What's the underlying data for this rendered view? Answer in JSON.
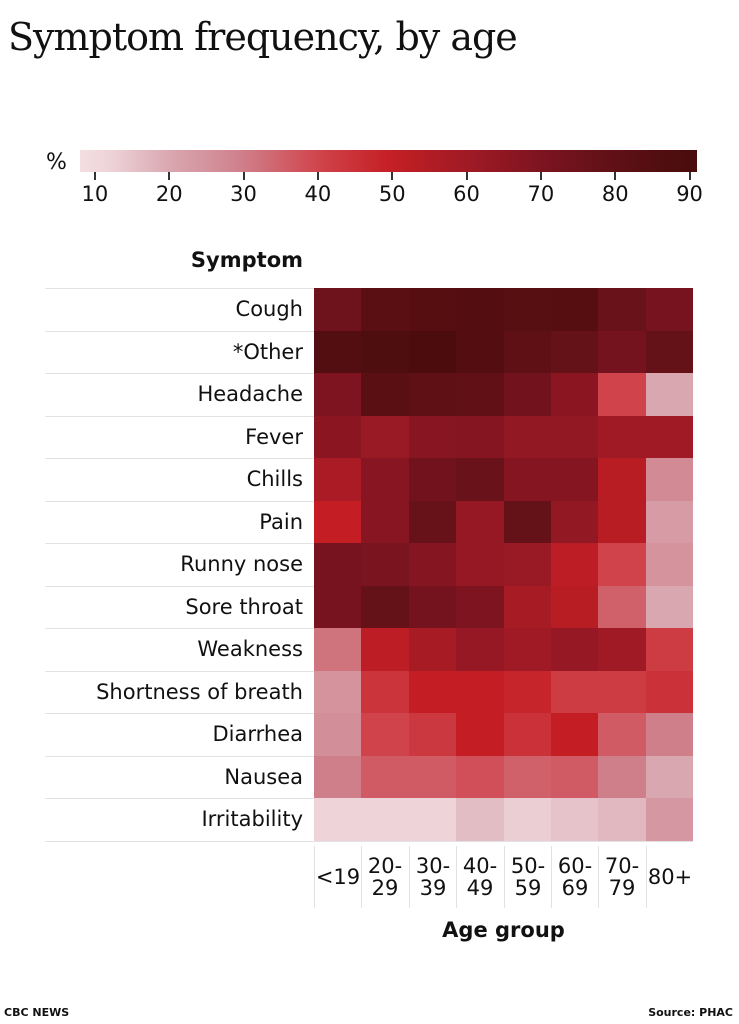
{
  "title": "Symptom frequency, by age",
  "footer": {
    "credit": "CBC NEWS",
    "source": "Source: PHAC"
  },
  "chart_data": {
    "type": "heatmap",
    "title": "Symptom frequency, by age",
    "xlabel": "Age group",
    "ylabel": "Symptom",
    "colorbar": {
      "label": "%",
      "ticks": [
        10,
        20,
        30,
        40,
        50,
        60,
        70,
        80,
        90
      ],
      "range": [
        8,
        91
      ],
      "colors": [
        "#f3dfe3",
        "#d9a7b0",
        "#cf7f8a",
        "#d0434b",
        "#c41e24",
        "#a01a25",
        "#7d1420",
        "#5e1015",
        "#4a0c0c"
      ]
    },
    "x": [
      "<19",
      "20-29",
      "30-39",
      "40-49",
      "50-59",
      "60-69",
      "70-79",
      "80+"
    ],
    "x_display": [
      [
        "<19"
      ],
      [
        "20-",
        "29"
      ],
      [
        "30-",
        "39"
      ],
      [
        "40-",
        "49"
      ],
      [
        "50-",
        "59"
      ],
      [
        "60-",
        "69"
      ],
      [
        "70-",
        "79"
      ],
      [
        "80+"
      ]
    ],
    "y": [
      "Cough",
      "*Other",
      "Headache",
      "Fever",
      "Chills",
      "Pain",
      "Runny nose",
      "Sore throat",
      "Weakness",
      "Shortness of breath",
      "Diarrhea",
      "Nausea",
      "Irritability"
    ],
    "values": [
      [
        75,
        82,
        84,
        85,
        83,
        84,
        76,
        72
      ],
      [
        86,
        88,
        89,
        85,
        80,
        78,
        73,
        78
      ],
      [
        70,
        82,
        80,
        79,
        74,
        66,
        40,
        20
      ],
      [
        66,
        62,
        67,
        68,
        64,
        64,
        60,
        60
      ],
      [
        57,
        67,
        74,
        76,
        68,
        68,
        53,
        27
      ],
      [
        50,
        67,
        77,
        63,
        78,
        64,
        53,
        23
      ],
      [
        72,
        71,
        68,
        63,
        62,
        52,
        40,
        25
      ],
      [
        72,
        78,
        73,
        70,
        58,
        53,
        35,
        20
      ],
      [
        32,
        52,
        58,
        63,
        60,
        63,
        60,
        42
      ],
      [
        25,
        44,
        50,
        50,
        48,
        42,
        42,
        45
      ],
      [
        26,
        40,
        43,
        50,
        45,
        50,
        36,
        30
      ],
      [
        30,
        36,
        36,
        38,
        35,
        36,
        30,
        20
      ],
      [
        12,
        12,
        12,
        16,
        13,
        15,
        17,
        24
      ]
    ]
  }
}
